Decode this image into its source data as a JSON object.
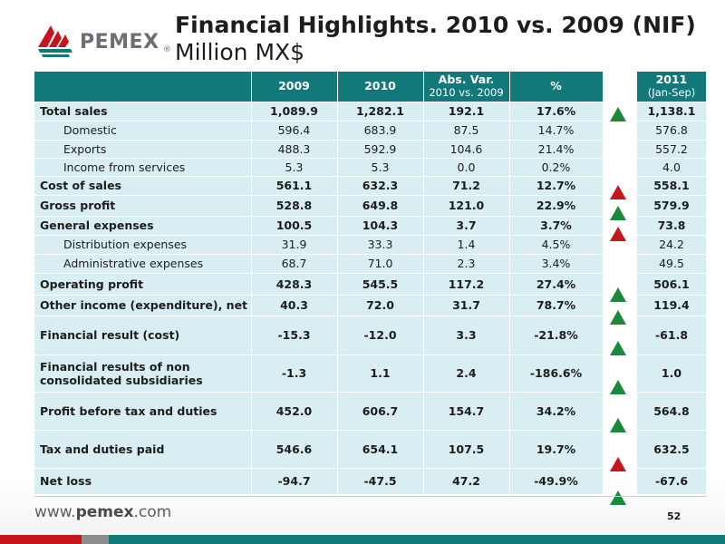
{
  "header": {
    "title_line1": "Financial Highlights. 2010 vs. 2009 (NIF)",
    "title_line2": "Million MX$"
  },
  "logo": {
    "text": "PEMEX",
    "reg_mark": "®",
    "icon": "pemex-eagle-logo-icon",
    "brand_color": "#c4161c"
  },
  "table": {
    "columns": [
      "",
      "2009",
      "2010",
      "Abs. Var.",
      "%"
    ],
    "abs_var_sub": "2010 vs. 2009",
    "rows": [
      {
        "label": "Total sales",
        "v2009": "1,089.9",
        "v2010": "1,282.1",
        "abs": "192.1",
        "pct": "17.6%"
      },
      {
        "label": "Domestic",
        "v2009": "596.4",
        "v2010": "683.9",
        "abs": "87.5",
        "pct": "14.7%"
      },
      {
        "label": "Exports",
        "v2009": "488.3",
        "v2010": "592.9",
        "abs": "104.6",
        "pct": "21.4%"
      },
      {
        "label": "Income from services",
        "v2009": "5.3",
        "v2010": "5.3",
        "abs": "0.0",
        "pct": "0.2%"
      },
      {
        "label": "Cost of sales",
        "v2009": "561.1",
        "v2010": "632.3",
        "abs": "71.2",
        "pct": "12.7%"
      },
      {
        "label": "Gross profit",
        "v2009": "528.8",
        "v2010": "649.8",
        "abs": "121.0",
        "pct": "22.9%"
      },
      {
        "label": "General expenses",
        "v2009": "100.5",
        "v2010": "104.3",
        "abs": "3.7",
        "pct": "3.7%"
      },
      {
        "label": "Distribution expenses",
        "v2009": "31.9",
        "v2010": "33.3",
        "abs": "1.4",
        "pct": "4.5%"
      },
      {
        "label": "Administrative expenses",
        "v2009": "68.7",
        "v2010": "71.0",
        "abs": "2.3",
        "pct": "3.4%"
      },
      {
        "label": "Operating profit",
        "v2009": "428.3",
        "v2010": "545.5",
        "abs": "117.2",
        "pct": "27.4%"
      },
      {
        "label": "Other income (expenditure), net",
        "v2009": "40.3",
        "v2010": "72.0",
        "abs": "31.7",
        "pct": "78.7%"
      },
      {
        "label": "Financial result (cost)",
        "v2009": "-15.3",
        "v2010": "-12.0",
        "abs": "3.3",
        "pct": "-21.8%"
      },
      {
        "label": "Financial results of non",
        "label2": "consolidated subsidiaries",
        "v2009": "-1.3",
        "v2010": "1.1",
        "abs": "2.4",
        "pct": "-186.6%"
      },
      {
        "label": "Profit before tax and duties",
        "v2009": "452.0",
        "v2010": "606.7",
        "abs": "154.7",
        "pct": "34.2%"
      },
      {
        "label": "Tax and duties paid",
        "v2009": "546.6",
        "v2010": "654.1",
        "abs": "107.5",
        "pct": "19.7%"
      },
      {
        "label": "Net loss",
        "v2009": "-94.7",
        "v2010": "-47.5",
        "abs": "47.2",
        "pct": "-49.9%"
      }
    ]
  },
  "col2011": {
    "header": "2011",
    "sub": "(Jan-Sep)",
    "values": [
      "1,138.1",
      "576.8",
      "557.2",
      "4.0",
      "558.1",
      "579.9",
      "73.8",
      "24.2",
      "49.5",
      "506.1",
      "119.4",
      "-61.8",
      "1.0",
      "564.8",
      "632.5",
      "-67.6"
    ]
  },
  "indicators": {
    "colors": {
      "up_good": "#1a8a3a",
      "up_bad": "#c4161c"
    },
    "rows": [
      "green-up",
      "",
      "",
      "",
      "red-up",
      "green-up",
      "red-up",
      "",
      "",
      "green-up",
      "green-up",
      "green-up",
      "green-up",
      "green-up",
      "red-up",
      "green-up"
    ]
  },
  "footer": {
    "url_prefix": "www.",
    "url_bold": "pemex",
    "url_suffix": ".com",
    "page_number": "52"
  },
  "colors": {
    "header_teal": "#13787a",
    "row_fill": "#d9eef2"
  }
}
